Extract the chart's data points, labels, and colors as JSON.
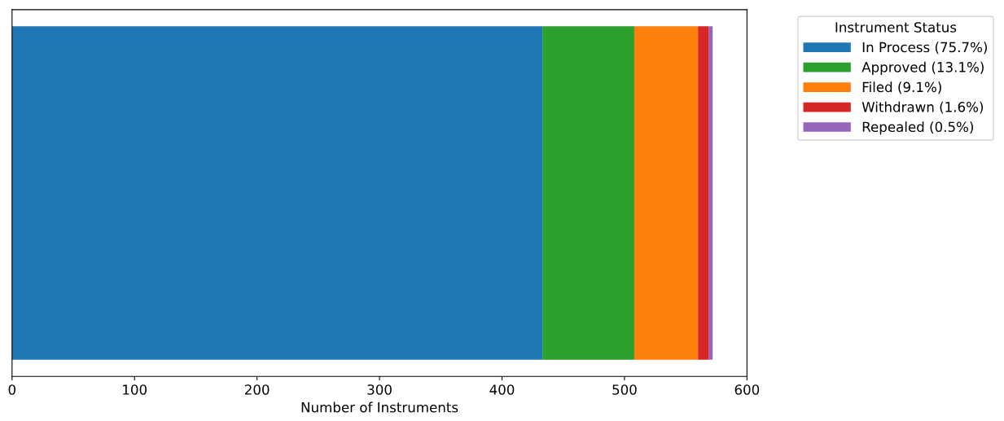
{
  "chart_data": {
    "type": "bar",
    "orientation": "horizontal",
    "stacked": true,
    "categories": [
      null
    ],
    "series": [
      {
        "name": "In Process (75.7%)",
        "color": "#1f77b4",
        "values": [
          433
        ]
      },
      {
        "name": "Approved (13.1%)",
        "color": "#2ca02c",
        "values": [
          75
        ]
      },
      {
        "name": "Filed (9.1%)",
        "color": "#ff7f0e",
        "values": [
          52
        ]
      },
      {
        "name": "Withdrawn (1.6%)",
        "color": "#d62728",
        "values": [
          9
        ]
      },
      {
        "name": "Repealed (0.5%)",
        "color": "#9467bd",
        "values": [
          3
        ]
      }
    ],
    "xlabel": "Number of Instruments",
    "legend_title": "Instrument Status",
    "legend": "top right",
    "xlim": [
      0,
      600
    ],
    "xticks": [
      0,
      100,
      200,
      300,
      400,
      500,
      600
    ],
    "tick_labels": "x",
    "grid": false
  }
}
